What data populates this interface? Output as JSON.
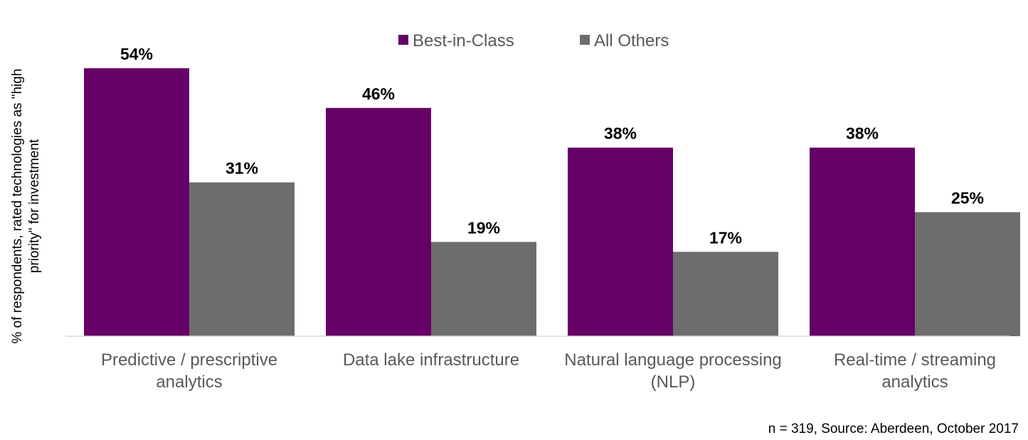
{
  "chart_data": {
    "type": "bar",
    "categories": [
      [
        "Predictive / prescriptive",
        "analytics"
      ],
      [
        "Data lake infrastructure"
      ],
      [
        "Natural language processing",
        "(NLP)"
      ],
      [
        "Real-time / streaming",
        "analytics"
      ]
    ],
    "series": [
      {
        "name": "Best-in-Class",
        "values": [
          54,
          46,
          38,
          38
        ],
        "labels": [
          "54%",
          "46%",
          "38%",
          "38%"
        ],
        "color": "#660066"
      },
      {
        "name": "All Others",
        "values": [
          31,
          19,
          17,
          25
        ],
        "labels": [
          "31%",
          "19%",
          "17%",
          "25%"
        ],
        "color": "#6d6d6d"
      }
    ],
    "ylabel": [
      "% of respondents, rated technologies as \"high",
      "priority\" for investment"
    ],
    "ylim": [
      0,
      54
    ],
    "grid": false,
    "legend_position": "top-center",
    "footnote": "n = 319, Source: Aberdeen, October 2017"
  }
}
